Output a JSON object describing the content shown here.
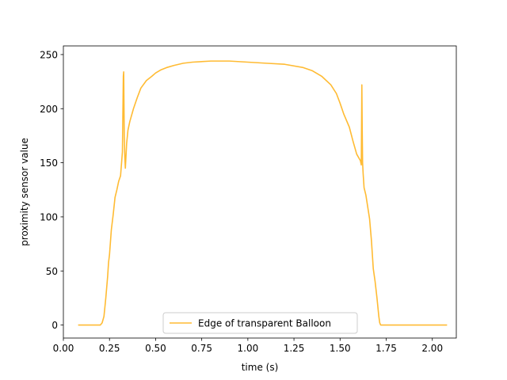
{
  "chart_data": {
    "type": "line",
    "title": "",
    "xlabel": "time (s)",
    "ylabel": "proximity sensor value",
    "xlim": [
      0.0,
      2.13
    ],
    "ylim": [
      -12,
      258
    ],
    "xticks": [
      0.0,
      0.25,
      0.5,
      0.75,
      1.0,
      1.25,
      1.5,
      1.75,
      2.0
    ],
    "xtick_labels": [
      "0.00",
      "0.25",
      "0.50",
      "0.75",
      "1.00",
      "1.25",
      "1.50",
      "1.75",
      "2.00"
    ],
    "yticks": [
      0,
      50,
      100,
      150,
      200,
      250
    ],
    "ytick_labels": [
      "0",
      "50",
      "100",
      "150",
      "200",
      "250"
    ],
    "grid": false,
    "legend_position": "lower center",
    "series": [
      {
        "name": "Edge of transparent Balloon",
        "color": "#ffbb33",
        "x": [
          0.08,
          0.15,
          0.2,
          0.21,
          0.22,
          0.23,
          0.24,
          0.245,
          0.25,
          0.26,
          0.27,
          0.28,
          0.29,
          0.3,
          0.31,
          0.32,
          0.325,
          0.327,
          0.33,
          0.333,
          0.336,
          0.34,
          0.343,
          0.346,
          0.35,
          0.36,
          0.38,
          0.4,
          0.42,
          0.45,
          0.48,
          0.5,
          0.53,
          0.56,
          0.6,
          0.65,
          0.7,
          0.8,
          0.9,
          1.0,
          1.1,
          1.2,
          1.3,
          1.35,
          1.4,
          1.45,
          1.48,
          1.5,
          1.52,
          1.55,
          1.57,
          1.59,
          1.61,
          1.615,
          1.618,
          1.62,
          1.622,
          1.625,
          1.63,
          1.64,
          1.66,
          1.67,
          1.68,
          1.69,
          1.7,
          1.71,
          1.715,
          1.72,
          1.73,
          1.8,
          1.9,
          2.0,
          2.08
        ],
        "y": [
          0,
          0,
          0,
          2,
          8,
          25,
          45,
          58,
          65,
          88,
          102,
          118,
          125,
          133,
          138,
          160,
          230,
          234,
          175,
          155,
          145,
          158,
          168,
          173,
          180,
          188,
          200,
          210,
          219,
          226,
          230,
          233,
          236,
          238,
          240,
          242,
          243,
          244,
          244,
          243,
          242,
          241,
          238,
          235,
          230,
          222,
          214,
          205,
          195,
          183,
          170,
          158,
          152,
          148,
          222,
          180,
          150,
          140,
          127,
          120,
          98,
          78,
          52,
          40,
          25,
          8,
          2,
          0,
          0,
          0,
          0,
          0,
          0
        ]
      }
    ]
  }
}
